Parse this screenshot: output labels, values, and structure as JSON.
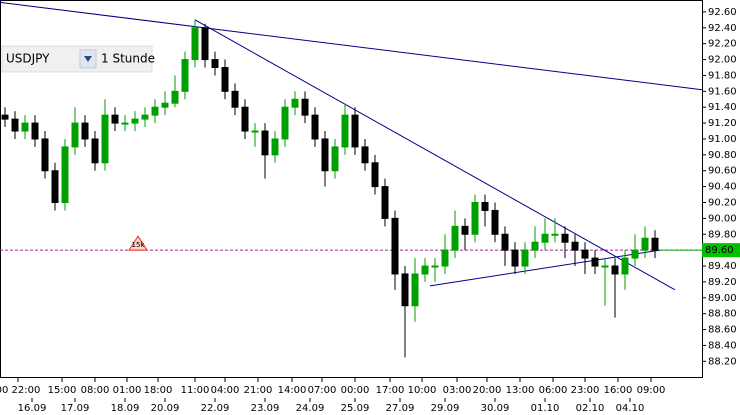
{
  "chart_data": {
    "type": "candlestick",
    "symbol": "USDJPY",
    "timeframe": "1 Stunde",
    "up_color": "#00a000",
    "down_color": "#000000",
    "xlim": [
      -0.5,
      69.7
    ],
    "ylim": [
      87.99,
      92.75
    ],
    "yticks": [
      {
        "value": 88.2,
        "label": "88.20"
      },
      {
        "value": 88.4,
        "label": "88.40"
      },
      {
        "value": 88.6,
        "label": "88.60"
      },
      {
        "value": 88.8,
        "label": "88.80"
      },
      {
        "value": 89.0,
        "label": "89.00"
      },
      {
        "value": 89.2,
        "label": "89.20"
      },
      {
        "value": 89.4,
        "label": "89.40"
      },
      {
        "value": 89.6,
        "label": "89.60"
      },
      {
        "value": 89.8,
        "label": "89.80"
      },
      {
        "value": 90.0,
        "label": "90.00"
      },
      {
        "value": 90.2,
        "label": "90.20"
      },
      {
        "value": 90.4,
        "label": "90.40"
      },
      {
        "value": 90.6,
        "label": "90.60"
      },
      {
        "value": 90.8,
        "label": "90.80"
      },
      {
        "value": 91.0,
        "label": "91.00"
      },
      {
        "value": 91.2,
        "label": "91.20"
      },
      {
        "value": 91.4,
        "label": "91.40"
      },
      {
        "value": 91.6,
        "label": "91.60"
      },
      {
        "value": 91.8,
        "label": "91.80"
      },
      {
        "value": 92.0,
        "label": "92.00"
      },
      {
        "value": 92.2,
        "label": "92.20"
      },
      {
        "value": 92.4,
        "label": "92.40"
      },
      {
        "value": 92.6,
        "label": "92.60"
      }
    ],
    "xticks": [
      {
        "value": 1.3,
        "label": "00 22:00"
      },
      {
        "value": 5.7,
        "label": "15:00"
      },
      {
        "value": 9.0,
        "label": "08:00"
      },
      {
        "value": 12.2,
        "label": "01:00"
      },
      {
        "value": 15.3,
        "label": "18:00"
      },
      {
        "value": 19.0,
        "label": "11:00"
      },
      {
        "value": 22.0,
        "label": "04:00"
      },
      {
        "value": 25.3,
        "label": "21:00"
      },
      {
        "value": 28.7,
        "label": "14:00"
      },
      {
        "value": 31.7,
        "label": "07:00"
      },
      {
        "value": 35.0,
        "label": "00:00"
      },
      {
        "value": 38.5,
        "label": "17:00"
      },
      {
        "value": 41.7,
        "label": "10:00"
      },
      {
        "value": 45.2,
        "label": "03:00"
      },
      {
        "value": 48.2,
        "label": "20:00"
      },
      {
        "value": 51.5,
        "label": "13:00"
      },
      {
        "value": 54.8,
        "label": "06:00"
      },
      {
        "value": 58.0,
        "label": "23:00"
      },
      {
        "value": 61.3,
        "label": "16:00"
      },
      {
        "value": 64.6,
        "label": "09:00"
      }
    ],
    "xticks_dates": [
      {
        "value": 2.7,
        "label": "16.09"
      },
      {
        "value": 7.0,
        "label": "17.09"
      },
      {
        "value": 12.0,
        "label": "18.09"
      },
      {
        "value": 16.0,
        "label": "20.09"
      },
      {
        "value": 21.0,
        "label": "22.09"
      },
      {
        "value": 26.0,
        "label": "23.09"
      },
      {
        "value": 30.5,
        "label": "24.09"
      },
      {
        "value": 35.0,
        "label": "25.09"
      },
      {
        "value": 39.5,
        "label": "27.09"
      },
      {
        "value": 44.0,
        "label": "29.09"
      },
      {
        "value": 49.0,
        "label": "30.09"
      },
      {
        "value": 54.0,
        "label": "01.10"
      },
      {
        "value": 58.5,
        "label": "02.10"
      },
      {
        "value": 62.5,
        "label": "04.10"
      }
    ],
    "open": [
      91.3,
      91.25,
      91.1,
      91.2,
      91.0,
      90.6,
      90.2,
      90.9,
      91.2,
      91.0,
      90.7,
      91.3,
      91.2,
      91.2,
      91.25,
      91.3,
      91.4,
      91.45,
      91.6,
      92.0,
      92.4,
      92.0,
      91.9,
      91.6,
      91.4,
      91.1,
      91.1,
      90.8,
      91.0,
      91.4,
      91.5,
      91.3,
      91.0,
      90.6,
      90.9,
      91.3,
      90.9,
      90.7,
      90.4,
      90.0,
      89.3,
      88.9,
      89.3,
      89.4,
      89.4,
      89.6,
      89.9,
      89.8,
      90.2,
      90.1,
      89.8,
      89.6,
      89.4,
      89.6,
      89.7,
      89.8,
      89.8,
      89.7,
      89.6,
      89.5,
      89.4,
      89.4,
      89.3,
      89.5,
      89.6,
      89.75
    ],
    "high": [
      91.4,
      91.35,
      91.3,
      91.3,
      91.1,
      90.7,
      91.0,
      91.4,
      91.3,
      91.1,
      91.5,
      91.4,
      91.3,
      91.35,
      91.4,
      91.5,
      91.6,
      91.8,
      92.1,
      92.5,
      92.45,
      92.1,
      92.0,
      91.7,
      91.5,
      91.2,
      91.2,
      91.1,
      91.5,
      91.6,
      91.6,
      91.4,
      91.1,
      91.0,
      91.45,
      91.4,
      91.0,
      90.8,
      90.5,
      90.1,
      89.4,
      89.5,
      89.5,
      89.5,
      89.8,
      90.1,
      90.0,
      90.3,
      90.3,
      90.2,
      89.9,
      89.7,
      89.7,
      89.9,
      90.0,
      90.0,
      89.9,
      89.8,
      89.7,
      89.6,
      89.5,
      89.5,
      89.6,
      89.8,
      89.9,
      89.85
    ],
    "low": [
      91.15,
      91.0,
      91.0,
      90.9,
      90.5,
      90.1,
      90.1,
      90.8,
      90.9,
      90.6,
      90.6,
      91.1,
      91.1,
      91.1,
      91.15,
      91.2,
      91.3,
      91.4,
      91.5,
      91.9,
      91.9,
      91.8,
      91.5,
      91.3,
      91.0,
      90.9,
      90.5,
      90.7,
      90.9,
      91.3,
      91.2,
      90.9,
      90.4,
      90.5,
      90.8,
      90.8,
      90.6,
      90.3,
      89.9,
      89.1,
      88.25,
      88.7,
      89.2,
      89.2,
      89.3,
      89.5,
      89.6,
      89.7,
      89.9,
      89.7,
      89.4,
      89.3,
      89.3,
      89.5,
      89.6,
      89.7,
      89.5,
      89.4,
      89.3,
      89.3,
      88.9,
      88.75,
      89.1,
      89.4,
      89.5,
      89.5
    ],
    "close": [
      91.25,
      91.1,
      91.2,
      91.0,
      90.6,
      90.2,
      90.9,
      91.2,
      91.0,
      90.7,
      91.3,
      91.2,
      91.2,
      91.25,
      91.3,
      91.4,
      91.45,
      91.6,
      92.0,
      92.4,
      92.0,
      91.9,
      91.6,
      91.4,
      91.1,
      91.1,
      90.8,
      91.0,
      91.4,
      91.5,
      91.3,
      91.0,
      90.6,
      90.9,
      91.3,
      90.9,
      90.7,
      90.4,
      90.0,
      89.3,
      88.9,
      89.3,
      89.4,
      89.4,
      89.6,
      89.9,
      89.8,
      90.2,
      90.1,
      89.8,
      89.6,
      89.4,
      89.6,
      89.7,
      89.8,
      89.8,
      89.7,
      89.6,
      89.5,
      89.4,
      89.4,
      89.3,
      89.5,
      89.6,
      89.75,
      89.6
    ],
    "trendlines": [
      {
        "x": [
          -0.5,
          69.7
        ],
        "y": [
          92.72,
          91.62
        ]
      },
      {
        "x": [
          19.0,
          67.0
        ],
        "y": [
          92.5,
          89.1
        ]
      },
      {
        "x": [
          42.5,
          65.5
        ],
        "y": [
          89.15,
          89.6
        ]
      }
    ],
    "price_line": {
      "value": 89.6,
      "label": "89.60"
    },
    "annotation": {
      "x": 13.3,
      "y": 89.6,
      "label": "15k"
    }
  }
}
